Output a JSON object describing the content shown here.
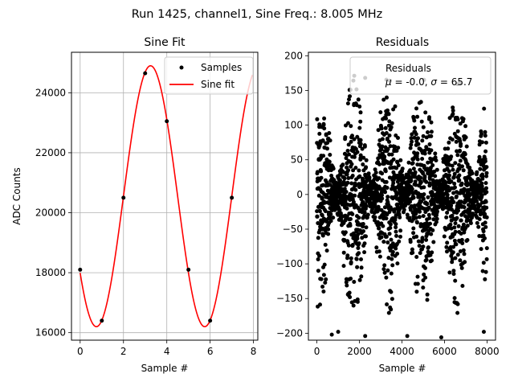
{
  "suptitle": "Run 1425, channel1, Sine Freq.: 8.005 MHz",
  "chart_data": [
    {
      "type": "line",
      "title": "Sine Fit",
      "xlabel": "Sample #",
      "ylabel": "ADC Counts",
      "xlim": [
        -0.4,
        8.2
      ],
      "ylim": [
        15750,
        25350
      ],
      "xticks": [
        0,
        2,
        4,
        6,
        8
      ],
      "yticks": [
        16000,
        18000,
        20000,
        22000,
        24000
      ],
      "grid": true,
      "legend_position": "upper right",
      "series": [
        {
          "name": "Samples",
          "kind": "scatter",
          "color": "#000000",
          "x": [
            0,
            1,
            2,
            3,
            4,
            5,
            6,
            7
          ],
          "y": [
            18100,
            16400,
            20500,
            24650,
            23050,
            18100,
            16400,
            20500
          ]
        },
        {
          "name": "Sine fit",
          "kind": "line",
          "color": "#ff0000",
          "model": {
            "offset": 20550,
            "amplitude": 4350,
            "period": 5.0,
            "phase_sample": 0.75
          },
          "x_range": [
            0,
            7.95
          ]
        }
      ]
    },
    {
      "type": "scatter",
      "title": "Residuals",
      "xlabel": "Sample #",
      "ylabel": "",
      "xlim": [
        -400,
        8400
      ],
      "ylim": [
        -210,
        205
      ],
      "xticks": [
        0,
        2000,
        4000,
        6000,
        8000
      ],
      "yticks": [
        -200,
        -150,
        -100,
        -50,
        0,
        50,
        100,
        150,
        200
      ],
      "grid": false,
      "legend_position": "upper right",
      "legend": {
        "line1": "Residuals",
        "mu": "-0.0",
        "sigma": "65.7"
      },
      "series": [
        {
          "name": "Residuals",
          "color": "#000000",
          "n_points": 8000,
          "envelope": {
            "mean": 0,
            "max_amplitude": 175,
            "min_amplitude": 20,
            "period": 1625
          },
          "visible_extremes": [
            {
              "x": 700,
              "y": -202
            },
            {
              "x": 1000,
              "y": -198
            },
            {
              "x": 2270,
              "y": -204
            },
            {
              "x": 4250,
              "y": -204
            },
            {
              "x": 5850,
              "y": -206
            },
            {
              "x": 7850,
              "y": -198
            },
            {
              "x": 2270,
              "y": 168
            }
          ]
        }
      ]
    }
  ],
  "colors": {
    "axes": "#000000",
    "grid": "#b0b0b0",
    "fit": "#ff0000",
    "points": "#000000"
  }
}
